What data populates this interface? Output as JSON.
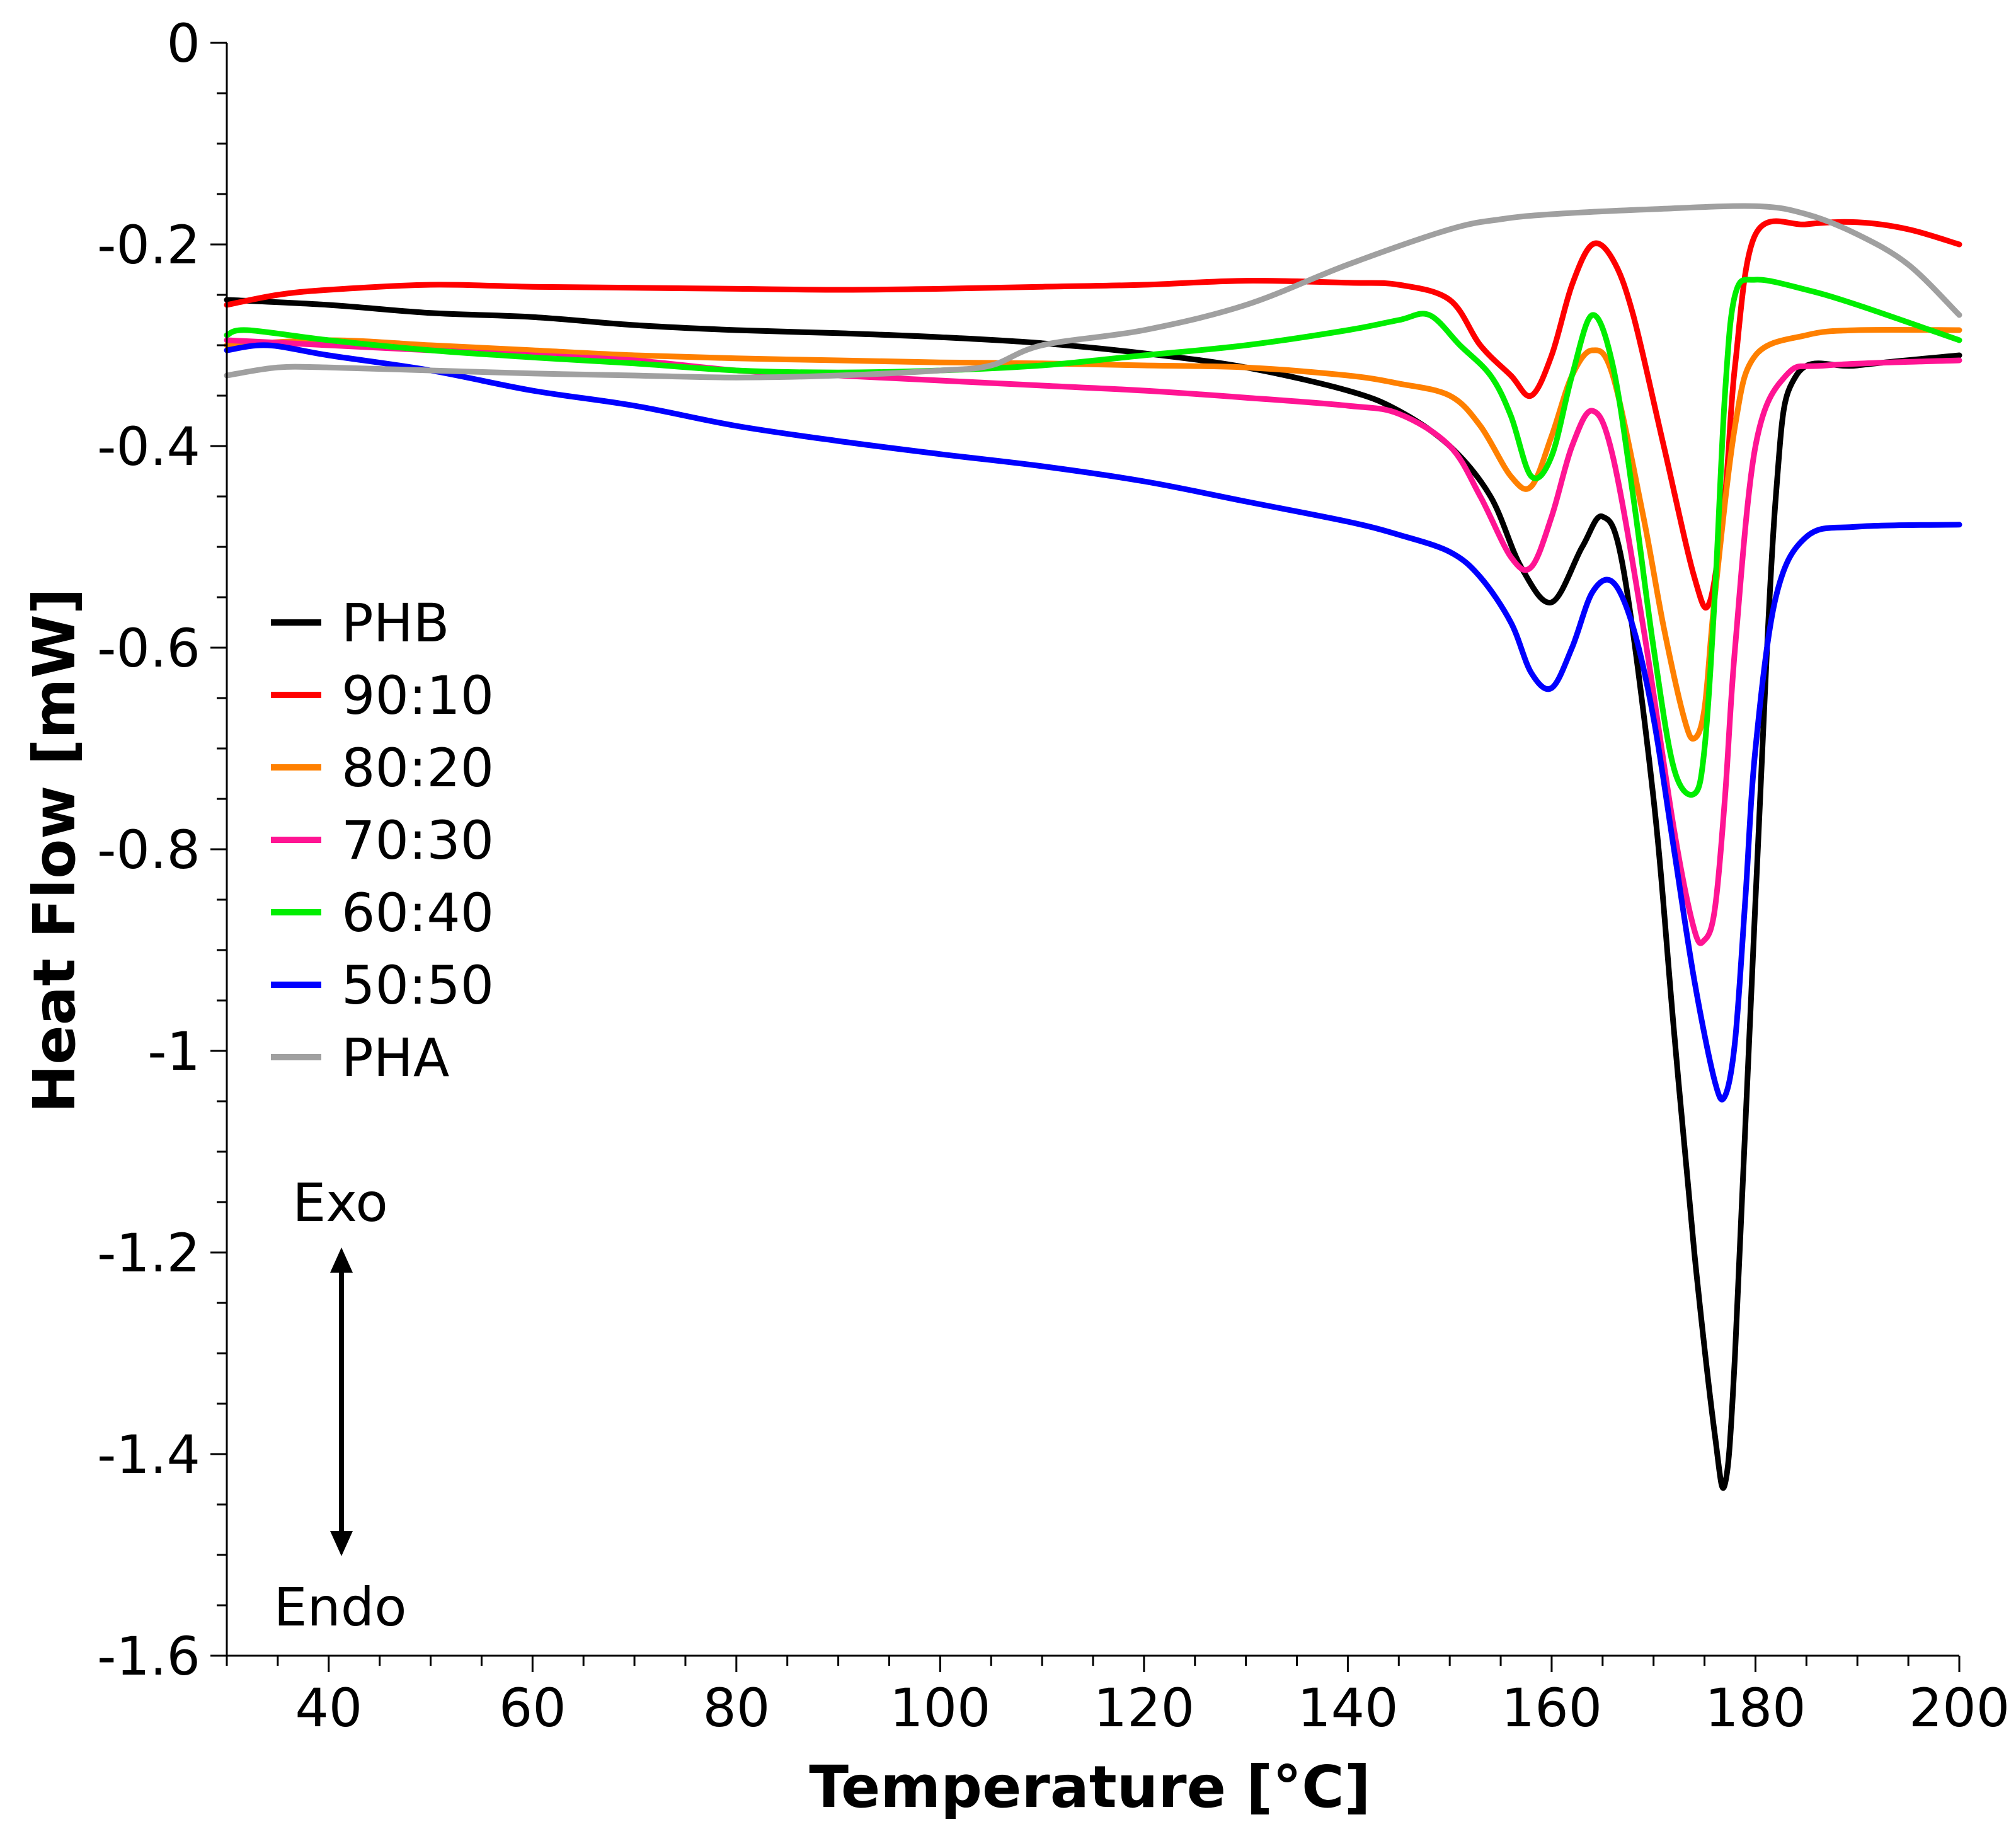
{
  "chart_data": {
    "type": "line",
    "title": "",
    "xlabel": "Temperature [°C]",
    "ylabel": "Heat Flow [mW]",
    "xlim": [
      30,
      200
    ],
    "ylim": [
      -1.6,
      0
    ],
    "xticks": [
      {
        "value": 40,
        "label": "40"
      },
      {
        "value": 60,
        "label": "60"
      },
      {
        "value": 80,
        "label": "80"
      },
      {
        "value": 100,
        "label": "100"
      },
      {
        "value": 120,
        "label": "120"
      },
      {
        "value": 140,
        "label": "140"
      },
      {
        "value": 160,
        "label": "160"
      },
      {
        "value": 180,
        "label": "180"
      },
      {
        "value": 200,
        "label": "200"
      }
    ],
    "yticks": [
      {
        "value": 0,
        "label": "0"
      },
      {
        "value": -0.2,
        "label": "-0.2"
      },
      {
        "value": -0.4,
        "label": "-0.4"
      },
      {
        "value": -0.6,
        "label": "-0.6"
      },
      {
        "value": -0.8,
        "label": "-0.8"
      },
      {
        "value": -1,
        "label": "-1"
      },
      {
        "value": -1.2,
        "label": "-1.2"
      },
      {
        "value": -1.4,
        "label": "-1.4"
      },
      {
        "value": -1.6,
        "label": "-1.6"
      }
    ],
    "grid": false,
    "legend_position": "left",
    "annotations": {
      "exo": "Exo",
      "endo": "Endo"
    },
    "series": [
      {
        "name": "PHB",
        "color": "#000000",
        "x": [
          30,
          40,
          50,
          60,
          70,
          80,
          90,
          100,
          110,
          120,
          130,
          140,
          145,
          150,
          154,
          157,
          160,
          163,
          165,
          167,
          170,
          172,
          174,
          176,
          177,
          178,
          180,
          182,
          184,
          190,
          200
        ],
        "y": [
          -0.255,
          -0.26,
          -0.268,
          -0.272,
          -0.28,
          -0.285,
          -0.288,
          -0.292,
          -0.298,
          -0.308,
          -0.322,
          -0.345,
          -0.365,
          -0.4,
          -0.45,
          -0.52,
          -0.555,
          -0.5,
          -0.47,
          -0.52,
          -0.75,
          -0.98,
          -1.2,
          -1.38,
          -1.43,
          -1.3,
          -0.85,
          -0.45,
          -0.33,
          -0.32,
          -0.31
        ]
      },
      {
        "name": "90:10",
        "color": "#ff0000",
        "x": [
          30,
          35,
          40,
          50,
          60,
          70,
          80,
          90,
          100,
          110,
          120,
          130,
          140,
          145,
          150,
          153,
          156,
          158,
          160,
          162,
          164,
          166,
          168,
          171,
          174,
          175.5,
          177,
          178,
          180,
          185,
          190,
          195,
          200
        ],
        "y": [
          -0.26,
          -0.25,
          -0.245,
          -0.24,
          -0.242,
          -0.243,
          -0.244,
          -0.245,
          -0.244,
          -0.242,
          -0.24,
          -0.236,
          -0.238,
          -0.24,
          -0.255,
          -0.3,
          -0.33,
          -0.35,
          -0.31,
          -0.24,
          -0.2,
          -0.215,
          -0.27,
          -0.4,
          -0.53,
          -0.555,
          -0.45,
          -0.32,
          -0.19,
          -0.18,
          -0.178,
          -0.185,
          -0.2
        ]
      },
      {
        "name": "80:20",
        "color": "#ff8000",
        "x": [
          30,
          40,
          50,
          60,
          70,
          80,
          90,
          100,
          110,
          120,
          130,
          140,
          145,
          150,
          153,
          156,
          158,
          160,
          162,
          164,
          166,
          169,
          171,
          173,
          174,
          175,
          176,
          178,
          180,
          185,
          190,
          200
        ],
        "y": [
          -0.3,
          -0.295,
          -0.3,
          -0.305,
          -0.31,
          -0.313,
          -0.315,
          -0.317,
          -0.318,
          -0.32,
          -0.322,
          -0.33,
          -0.338,
          -0.35,
          -0.38,
          -0.43,
          -0.44,
          -0.39,
          -0.33,
          -0.305,
          -0.33,
          -0.47,
          -0.58,
          -0.67,
          -0.69,
          -0.66,
          -0.55,
          -0.38,
          -0.31,
          -0.29,
          -0.285,
          -0.285
        ]
      },
      {
        "name": "70:30",
        "color": "#ff1493",
        "x": [
          30,
          40,
          50,
          60,
          70,
          80,
          90,
          100,
          110,
          120,
          130,
          140,
          145,
          150,
          153,
          156,
          158,
          160,
          162,
          164,
          166,
          169,
          172,
          174,
          175,
          176,
          177,
          178,
          180,
          183,
          187,
          200
        ],
        "y": [
          -0.295,
          -0.3,
          -0.305,
          -0.31,
          -0.315,
          -0.325,
          -0.33,
          -0.335,
          -0.34,
          -0.345,
          -0.352,
          -0.36,
          -0.368,
          -0.4,
          -0.45,
          -0.51,
          -0.52,
          -0.47,
          -0.4,
          -0.365,
          -0.41,
          -0.58,
          -0.78,
          -0.88,
          -0.89,
          -0.86,
          -0.75,
          -0.6,
          -0.4,
          -0.33,
          -0.32,
          -0.315
        ]
      },
      {
        "name": "60:40",
        "color": "#00ee00",
        "x": [
          30,
          32,
          40,
          50,
          60,
          70,
          80,
          90,
          100,
          110,
          120,
          130,
          140,
          145,
          148,
          151,
          154,
          156,
          158,
          160,
          162,
          164,
          166,
          168,
          170,
          172,
          174,
          175,
          176,
          177,
          178,
          180,
          185,
          190,
          200
        ],
        "y": [
          -0.29,
          -0.285,
          -0.295,
          -0.305,
          -0.312,
          -0.318,
          -0.325,
          -0.327,
          -0.325,
          -0.32,
          -0.31,
          -0.3,
          -0.285,
          -0.275,
          -0.27,
          -0.3,
          -0.33,
          -0.37,
          -0.43,
          -0.41,
          -0.33,
          -0.27,
          -0.32,
          -0.45,
          -0.6,
          -0.72,
          -0.745,
          -0.7,
          -0.55,
          -0.35,
          -0.25,
          -0.235,
          -0.245,
          -0.26,
          -0.295
        ]
      },
      {
        "name": "50:50",
        "color": "#0000ff",
        "x": [
          30,
          34,
          40,
          50,
          60,
          70,
          80,
          90,
          100,
          110,
          120,
          130,
          140,
          145,
          150,
          153,
          156,
          158,
          160,
          162,
          164,
          166,
          168,
          170,
          172,
          174,
          176,
          177,
          178,
          179,
          180,
          182,
          185,
          190,
          200
        ],
        "y": [
          -0.305,
          -0.3,
          -0.31,
          -0.325,
          -0.345,
          -0.36,
          -0.38,
          -0.395,
          -0.408,
          -0.42,
          -0.435,
          -0.455,
          -0.475,
          -0.488,
          -0.505,
          -0.53,
          -0.575,
          -0.625,
          -0.64,
          -0.6,
          -0.545,
          -0.535,
          -0.58,
          -0.67,
          -0.8,
          -0.93,
          -1.03,
          -1.045,
          -0.99,
          -0.85,
          -0.7,
          -0.55,
          -0.49,
          -0.48,
          -0.478
        ]
      },
      {
        "name": "PHA",
        "color": "#a0a0a0",
        "x": [
          30,
          35,
          40,
          50,
          60,
          70,
          80,
          90,
          100,
          105,
          110,
          120,
          130,
          140,
          150,
          155,
          160,
          170,
          180,
          185,
          190,
          195,
          200
        ],
        "y": [
          -0.33,
          -0.322,
          -0.322,
          -0.325,
          -0.328,
          -0.33,
          -0.332,
          -0.33,
          -0.325,
          -0.32,
          -0.3,
          -0.285,
          -0.26,
          -0.22,
          -0.185,
          -0.175,
          -0.17,
          -0.165,
          -0.162,
          -0.17,
          -0.19,
          -0.22,
          -0.27
        ]
      }
    ]
  }
}
